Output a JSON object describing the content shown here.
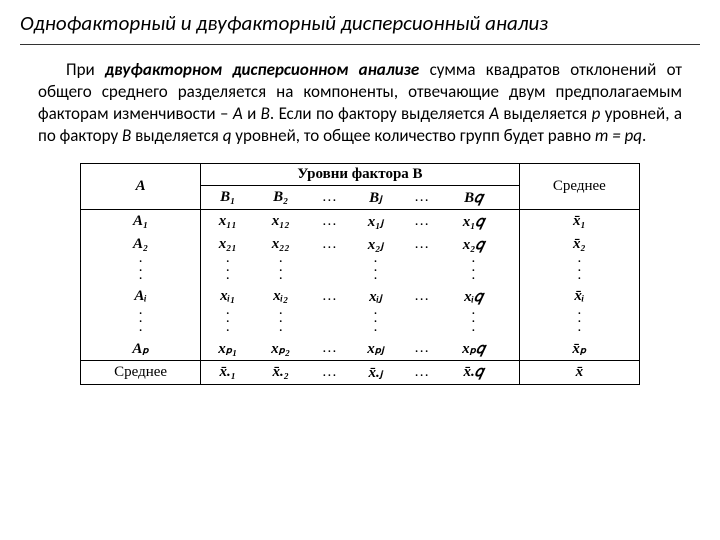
{
  "title": "Однофакторный и двуфакторный дисперсионный анализ",
  "para": {
    "lead": "При ",
    "term": "двуфакторном дисперсионном анализе",
    "after_term": " сумма квадратов отклонений от общего среднего разделяется на компоненты, отвечающие двум предполагаемым факторам изменчивости – ",
    "A": "А",
    "and": " и ",
    "B": "В",
    "after_B": ". Если по фактору выделяется ",
    "A2": "А",
    "txt2": " выделяется ",
    "p": "p",
    "txt3": " уровней, а по фактору ",
    "B2": "В",
    "txt4": " выделяется ",
    "q": "q",
    "txt5": " уровней, то общее количество групп будет равно ",
    "m": "m = pq",
    "dot": "."
  },
  "table": {
    "headerA": "A",
    "headerLevels": "Уровни фактора  B",
    "headerMean": "Среднее",
    "B1": "B₁",
    "B2": "B₂",
    "Bj": "Bⱼ",
    "Bq": "B𝑞",
    "A1": "A₁",
    "A2row": "A₂",
    "Ai": "Aᵢ",
    "Ap": "Aₚ",
    "x11": "x₁₁",
    "x12": "x₁₂",
    "x1j": "x₁ⱼ",
    "x1q": "x₁𝑞",
    "x21": "x₂₁",
    "x22": "x₂₂",
    "x2j": "x₂ⱼ",
    "x2q": "x₂𝑞",
    "xi1": "xᵢ₁",
    "xi2": "xᵢ₂",
    "xij": "xᵢⱼ",
    "xiq": "xᵢ𝑞",
    "xp1": "xₚ₁",
    "xp2": "xₚ₂",
    "xpj": "xₚⱼ",
    "xpq": "xₚ𝑞",
    "xbar1": "x̄₁",
    "xbar2": "x̄₂",
    "xbari": "x̄ᵢ",
    "xbarp": "x̄ₚ",
    "meanRow": "Среднее",
    "xcol1": "x̄.₁",
    "xcol2": "x̄.₂",
    "xcolj": "x̄.ⱼ",
    "xcolq": "x̄.𝑞",
    "xgrand": "x̄",
    "dots": "…",
    "vdot": "·"
  },
  "style": {
    "title_fontsize": 21,
    "para_fontsize": 17,
    "table_fontsize": 15,
    "text_color": "#000000",
    "bg_color": "#ffffff",
    "table_font": "Times New Roman"
  }
}
